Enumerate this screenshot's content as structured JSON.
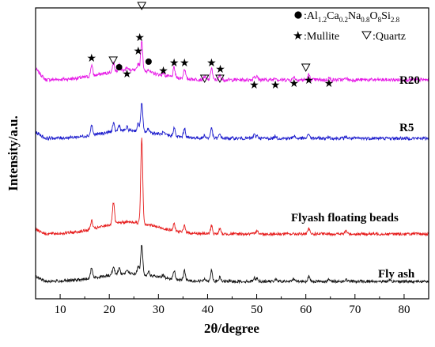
{
  "chart_data": {
    "type": "line",
    "xlabel": "2θ/degree",
    "ylabel": "Intensity/a.u.",
    "xlim": [
      5,
      85
    ],
    "x_ticks": [
      "10",
      "20",
      "30",
      "40",
      "50",
      "60",
      "70",
      "80"
    ],
    "y_ticks_shown": false,
    "series": [
      {
        "name": "R20",
        "color": "#e619e6"
      },
      {
        "name": "R5",
        "color": "#1a1acc"
      },
      {
        "name": "Flyash floating beads",
        "color": "#e61a1a"
      },
      {
        "name": "Fly ash",
        "color": "#111111"
      }
    ],
    "legend": {
      "phase1_prefix": ":Al",
      "phase1_parts": [
        {
          "sub": "1.2"
        },
        {
          "main": "Ca"
        },
        {
          "sub": "0.2"
        },
        {
          "main": "Na"
        },
        {
          "sub": "0.8"
        },
        {
          "main": "O"
        },
        {
          "sub": "8"
        },
        {
          "main": "Si"
        },
        {
          "sub": "2.8"
        }
      ],
      "mullite": ":Mullite",
      "quartz": ":Quartz"
    },
    "markers": {
      "mullite": [
        16.4,
        23.6,
        25.9,
        26.2,
        31.0,
        33.2,
        35.3,
        40.8,
        42.6,
        49.5,
        53.8,
        57.6,
        60.6,
        64.7
      ],
      "quartz": [
        20.8,
        26.6,
        39.4,
        42.5,
        60.0
      ],
      "phase": [
        22.0,
        28.0
      ]
    }
  }
}
